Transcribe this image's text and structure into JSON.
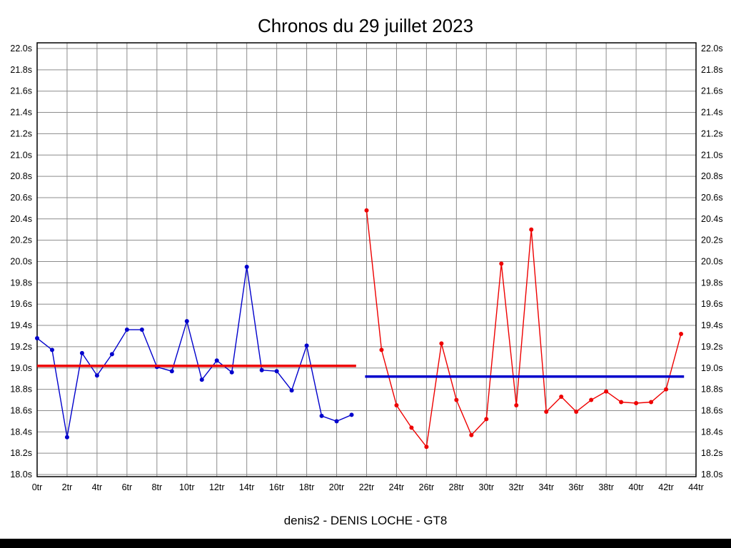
{
  "title": "Chronos du 29 juillet 2023",
  "footer": {
    "label": "denis2 - DENIS LOCHE - GT8"
  },
  "chart_data": {
    "type": "line",
    "title": "Chronos du 29 juillet 2023",
    "subtitle": "denis2 - DENIS LOCHE - GT8",
    "xlabel": "",
    "ylabel": "",
    "x_unit": "tr",
    "y_unit": "s",
    "xlim": [
      0,
      44
    ],
    "ylim": [
      18.0,
      22.0
    ],
    "grid": true,
    "grid_color": "#8c8c8c",
    "x_ticks": [
      {
        "value": 0,
        "label": "0tr"
      },
      {
        "value": 2,
        "label": "2tr"
      },
      {
        "value": 4,
        "label": "4tr"
      },
      {
        "value": 6,
        "label": "6tr"
      },
      {
        "value": 8,
        "label": "8tr"
      },
      {
        "value": 10,
        "label": "10tr"
      },
      {
        "value": 12,
        "label": "12tr"
      },
      {
        "value": 14,
        "label": "14tr"
      },
      {
        "value": 16,
        "label": "16tr"
      },
      {
        "value": 18,
        "label": "18tr"
      },
      {
        "value": 20,
        "label": "20tr"
      },
      {
        "value": 22,
        "label": "22tr"
      },
      {
        "value": 24,
        "label": "24tr"
      },
      {
        "value": 26,
        "label": "26tr"
      },
      {
        "value": 28,
        "label": "28tr"
      },
      {
        "value": 30,
        "label": "30tr"
      },
      {
        "value": 32,
        "label": "32tr"
      },
      {
        "value": 34,
        "label": "34tr"
      },
      {
        "value": 36,
        "label": "36tr"
      },
      {
        "value": 38,
        "label": "38tr"
      },
      {
        "value": 40,
        "label": "40tr"
      },
      {
        "value": 42,
        "label": "42tr"
      },
      {
        "value": 44,
        "label": "44tr"
      }
    ],
    "y_ticks": [
      {
        "value": 18.0,
        "label": "18.0s"
      },
      {
        "value": 18.2,
        "label": "18.2s"
      },
      {
        "value": 18.4,
        "label": "18.4s"
      },
      {
        "value": 18.6,
        "label": "18.6s"
      },
      {
        "value": 18.8,
        "label": "18.8s"
      },
      {
        "value": 19.0,
        "label": "19.0s"
      },
      {
        "value": 19.2,
        "label": "19.2s"
      },
      {
        "value": 19.4,
        "label": "19.4s"
      },
      {
        "value": 19.6,
        "label": "19.6s"
      },
      {
        "value": 19.8,
        "label": "19.8s"
      },
      {
        "value": 20.0,
        "label": "20.0s"
      },
      {
        "value": 20.2,
        "label": "20.2s"
      },
      {
        "value": 20.4,
        "label": "20.4s"
      },
      {
        "value": 20.6,
        "label": "20.6s"
      },
      {
        "value": 20.8,
        "label": "20.8s"
      },
      {
        "value": 21.0,
        "label": "21.0s"
      },
      {
        "value": 21.2,
        "label": "21.2s"
      },
      {
        "value": 21.4,
        "label": "21.4s"
      },
      {
        "value": 21.6,
        "label": "21.6s"
      },
      {
        "value": 21.8,
        "label": "21.8s"
      },
      {
        "value": 22.0,
        "label": "22.0s"
      }
    ],
    "series": [
      {
        "name": "chronos-session-1",
        "color": "#0000cc",
        "x": [
          0,
          1,
          2,
          3,
          4,
          5,
          6,
          7,
          8,
          9,
          10,
          11,
          12,
          13,
          14,
          15,
          16,
          17,
          18,
          19,
          20,
          21
        ],
        "values": [
          19.28,
          19.17,
          18.35,
          19.14,
          18.93,
          19.13,
          19.36,
          19.36,
          19.01,
          18.97,
          19.44,
          18.89,
          19.07,
          18.96,
          19.95,
          18.98,
          18.97,
          18.79,
          19.21,
          18.55,
          18.5,
          18.56
        ]
      },
      {
        "name": "chronos-session-2",
        "color": "#ee0000",
        "x": [
          22,
          23,
          24,
          25,
          26,
          27,
          28,
          29,
          30,
          31,
          32,
          33,
          34,
          35,
          36,
          37,
          38,
          39,
          40,
          41,
          42,
          43
        ],
        "values": [
          20.48,
          19.17,
          18.65,
          18.44,
          18.26,
          19.23,
          18.7,
          18.37,
          18.52,
          19.98,
          18.65,
          20.3,
          18.59,
          18.73,
          18.59,
          18.7,
          18.78,
          18.68,
          18.67,
          18.68,
          18.8,
          19.32
        ]
      }
    ],
    "reference_lines": [
      {
        "name": "mean-line-session-1",
        "color": "#ee0000",
        "y": 19.02,
        "x_start": 0,
        "x_end": 21.3
      },
      {
        "name": "mean-line-session-2",
        "color": "#0000cc",
        "y": 18.92,
        "x_start": 21.9,
        "x_end": 43.2
      }
    ],
    "legend": null
  }
}
